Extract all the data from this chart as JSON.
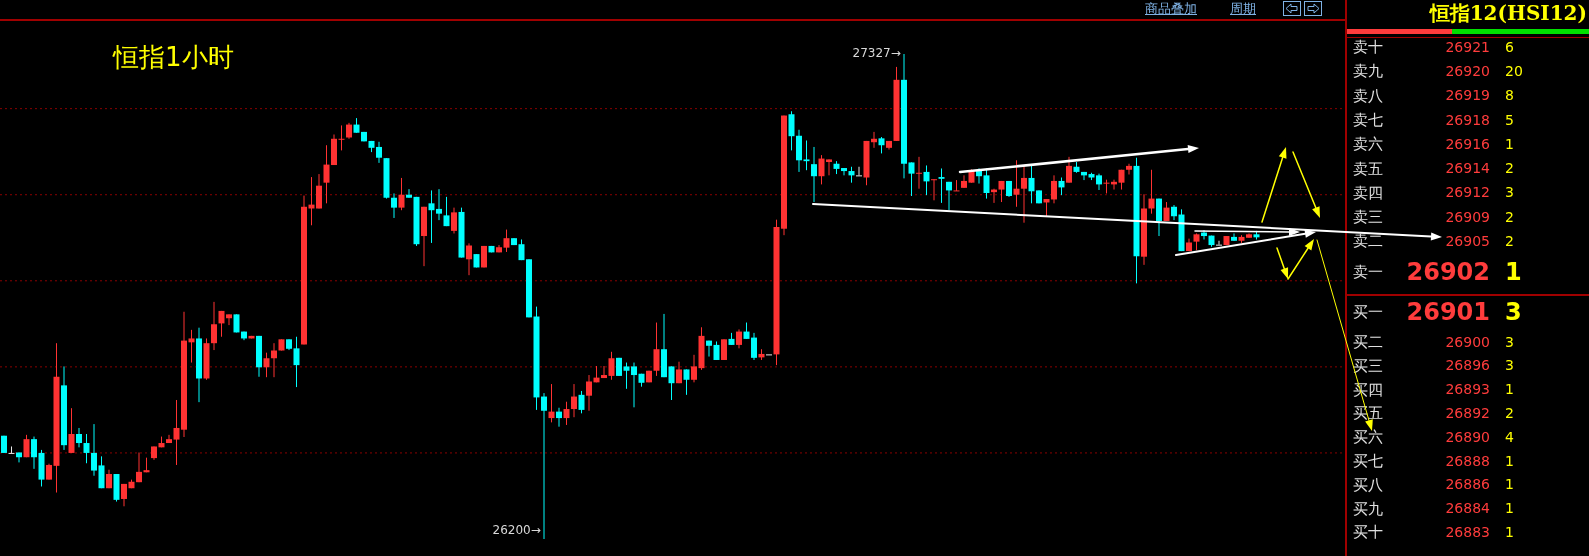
{
  "chart_data": [
    {
      "type": "candlestick",
      "title": "恒指1小时",
      "tick_labels": false,
      "grid": "y",
      "yticks": [
        {
          "value": 26400,
          "label": null
        },
        {
          "value": 26600,
          "label": null
        },
        {
          "value": 26800,
          "label": null
        },
        {
          "value": 27000,
          "label": null
        },
        {
          "value": 27200,
          "label": null
        }
      ],
      "annotations": [
        "27327→",
        "26200→",
        "商品叠加",
        "周期"
      ],
      "categories": [
        null,
        null,
        null,
        null,
        null,
        null,
        null,
        null,
        null,
        null,
        null,
        null,
        null,
        null,
        null,
        null,
        null,
        null,
        null,
        null,
        null,
        null,
        null,
        null,
        null,
        null,
        null,
        null,
        null,
        null,
        null,
        null,
        null,
        null,
        null,
        null,
        null,
        null,
        null,
        null,
        null,
        null,
        null,
        null,
        null,
        null,
        null,
        null,
        null,
        null,
        null,
        null,
        null,
        null,
        null,
        null,
        null,
        null,
        null,
        null,
        null,
        null,
        null,
        null,
        null,
        null,
        null,
        null,
        null,
        null,
        null,
        null,
        null,
        null,
        null,
        null,
        null,
        null,
        null,
        null,
        null,
        null,
        null,
        null,
        null,
        null,
        null,
        null,
        null,
        null,
        null,
        null,
        null,
        null,
        null,
        null,
        null,
        null,
        null,
        null,
        null,
        null,
        null,
        null,
        null,
        null,
        null,
        null,
        null,
        null,
        null,
        null,
        null,
        null,
        null,
        null,
        null,
        null,
        null,
        null,
        null,
        null,
        null,
        null,
        null,
        null,
        null,
        null,
        null,
        null,
        null,
        null,
        null,
        null,
        null,
        null,
        null,
        null,
        null,
        null,
        null,
        null,
        null,
        null,
        null,
        null,
        null,
        null,
        null,
        null,
        null,
        null,
        null,
        null,
        null,
        null,
        null,
        null,
        null,
        null,
        null,
        null,
        null,
        null,
        null,
        null,
        null,
        null
      ],
      "ohlc": [
        [
          26440,
          26440,
          26400,
          26400
        ],
        [
          26400,
          26415,
          26400,
          26400
        ],
        [
          26401,
          26401,
          26378,
          26390
        ],
        [
          26390,
          26442,
          26390,
          26432
        ],
        [
          26432,
          26438,
          26363,
          26390
        ],
        [
          26400,
          26407,
          26322,
          26338
        ],
        [
          26338,
          26375,
          26338,
          26372
        ],
        [
          26370,
          26655,
          26308,
          26577
        ],
        [
          26557,
          26601,
          26407,
          26418
        ],
        [
          26400,
          26504,
          26400,
          26444
        ],
        [
          26444,
          26458,
          26413,
          26423
        ],
        [
          26423,
          26444,
          26376,
          26400
        ],
        [
          26400,
          26467,
          26347,
          26359
        ],
        [
          26371,
          26392,
          26318,
          26318
        ],
        [
          26318,
          26361,
          26318,
          26351
        ],
        [
          26351,
          26351,
          26287,
          26291
        ],
        [
          26293,
          26328,
          26276,
          26328
        ],
        [
          26318,
          26338,
          26318,
          26333
        ],
        [
          26332,
          26401,
          26332,
          26356
        ],
        [
          26355,
          26389,
          26355,
          26360
        ],
        [
          26388,
          26415,
          26384,
          26415
        ],
        [
          26413,
          26438,
          26413,
          26423
        ],
        [
          26423,
          26442,
          26423,
          26432
        ],
        [
          26431,
          26523,
          26372,
          26458
        ],
        [
          26454,
          26728,
          26437,
          26661
        ],
        [
          26657,
          26686,
          26610,
          26666
        ],
        [
          26666,
          26691,
          26518,
          26573
        ],
        [
          26573,
          26666,
          26570,
          26655
        ],
        [
          26655,
          26751,
          26639,
          26699
        ],
        [
          26701,
          26730,
          26670,
          26730
        ],
        [
          26713,
          26722,
          26697,
          26722
        ],
        [
          26722,
          26722,
          26680,
          26680
        ],
        [
          26682,
          26682,
          26662,
          26666
        ],
        [
          26666,
          26672,
          26666,
          26672
        ],
        [
          26672,
          26672,
          26577,
          26599
        ],
        [
          26599,
          26633,
          26576,
          26620
        ],
        [
          26620,
          26655,
          26576,
          26638
        ],
        [
          26638,
          26664,
          26638,
          26664
        ],
        [
          26664,
          26664,
          26639,
          26642
        ],
        [
          26643,
          26670,
          26553,
          26604
        ],
        [
          26652,
          26998,
          26652,
          26972
        ],
        [
          26968,
          27041,
          26929,
          26977
        ],
        [
          26968,
          27048,
          26968,
          27021
        ],
        [
          27028,
          27115,
          26980,
          27070
        ],
        [
          27069,
          27140,
          27069,
          27130
        ],
        [
          27128,
          27161,
          27103,
          27130
        ],
        [
          27133,
          27167,
          27130,
          27163
        ],
        [
          27163,
          27178,
          27144,
          27144
        ],
        [
          27146,
          27146,
          27124,
          27124
        ],
        [
          27125,
          27125,
          27099,
          27109
        ],
        [
          27111,
          27123,
          27074,
          27086
        ],
        [
          27085,
          27085,
          26991,
          26993
        ],
        [
          26993,
          27003,
          26946,
          26970
        ],
        [
          26970,
          27039,
          26964,
          27000
        ],
        [
          27000,
          27013,
          26993,
          26993
        ],
        [
          26995,
          26995,
          26881,
          26885
        ],
        [
          26904,
          26972,
          26834,
          26972
        ],
        [
          26980,
          27010,
          26888,
          26964
        ],
        [
          26967,
          27013,
          26941,
          26956
        ],
        [
          26952,
          26995,
          26927,
          26927
        ],
        [
          26916,
          26970,
          26910,
          26959
        ],
        [
          26960,
          26970,
          26854,
          26854
        ],
        [
          26850,
          26887,
          26813,
          26882
        ],
        [
          26862,
          26862,
          26831,
          26831
        ],
        [
          26831,
          26881,
          26831,
          26881
        ],
        [
          26881,
          26881,
          26866,
          26866
        ],
        [
          26866,
          26883,
          26866,
          26878
        ],
        [
          26877,
          26919,
          26867,
          26899
        ],
        [
          26899,
          26899,
          26883,
          26883
        ],
        [
          26885,
          26896,
          26848,
          26848
        ],
        [
          26850,
          26850,
          26715,
          26715
        ],
        [
          26717,
          26740,
          26500,
          26529
        ],
        [
          26531,
          26539,
          26200,
          26498
        ],
        [
          26481,
          26560,
          26471,
          26496
        ],
        [
          26496,
          26505,
          26461,
          26481
        ],
        [
          26481,
          26519,
          26465,
          26502
        ],
        [
          26502,
          26560,
          26483,
          26531
        ],
        [
          26535,
          26544,
          26492,
          26500
        ],
        [
          26533,
          26581,
          26498,
          26566
        ],
        [
          26564,
          26602,
          26564,
          26575
        ],
        [
          26574,
          26602,
          26574,
          26581
        ],
        [
          26579,
          26635,
          26570,
          26620
        ],
        [
          26621,
          26621,
          26579,
          26579
        ],
        [
          26601,
          26610,
          26549,
          26591
        ],
        [
          26601,
          26610,
          26506,
          26581
        ],
        [
          26584,
          26584,
          26554,
          26563
        ],
        [
          26564,
          26591,
          26564,
          26591
        ],
        [
          26591,
          26703,
          26579,
          26641
        ],
        [
          26641,
          26723,
          26576,
          26576
        ],
        [
          26601,
          26601,
          26523,
          26562
        ],
        [
          26562,
          26612,
          26562,
          26594
        ],
        [
          26594,
          26594,
          26535,
          26570
        ],
        [
          26570,
          26628,
          26564,
          26601
        ],
        [
          26597,
          26692,
          26593,
          26672
        ],
        [
          26661,
          26661,
          26624,
          26649
        ],
        [
          26651,
          26659,
          26616,
          26616
        ],
        [
          26616,
          26664,
          26616,
          26664
        ],
        [
          26665,
          26679,
          26651,
          26651
        ],
        [
          26651,
          26687,
          26643,
          26682
        ],
        [
          26682,
          26703,
          26665,
          26665
        ],
        [
          26668,
          26679,
          26616,
          26621
        ],
        [
          26622,
          26641,
          26616,
          26630
        ],
        [
          26629,
          26629,
          26629,
          26629
        ],
        [
          26629,
          26942,
          26604,
          26925
        ],
        [
          26921,
          27184,
          26906,
          27184
        ],
        [
          27187,
          27194,
          27103,
          27136
        ],
        [
          27137,
          27151,
          27053,
          27080
        ],
        [
          27082,
          27126,
          27057,
          27078
        ],
        [
          27071,
          27111,
          26983,
          27043
        ],
        [
          27043,
          27092,
          27024,
          27084
        ],
        [
          27076,
          27082,
          27045,
          27082
        ],
        [
          27072,
          27078,
          27048,
          27060
        ],
        [
          27062,
          27062,
          27045,
          27055
        ],
        [
          27055,
          27065,
          27028,
          27045
        ],
        [
          27045,
          27065,
          27045,
          27045
        ],
        [
          27040,
          27125,
          27022,
          27125
        ],
        [
          27122,
          27146,
          27109,
          27130
        ],
        [
          27131,
          27134,
          27096,
          27115
        ],
        [
          27109,
          27125,
          27105,
          27125
        ],
        [
          27125,
          27297,
          27125,
          27267
        ],
        [
          27267,
          27327,
          27038,
          27072
        ],
        [
          27075,
          27075,
          26997,
          27049
        ],
        [
          27050,
          27088,
          27014,
          27051
        ],
        [
          27053,
          27068,
          26999,
          27031
        ],
        [
          27035,
          27036,
          26987,
          27036
        ],
        [
          27041,
          27061,
          26981,
          27037
        ],
        [
          27030,
          27030,
          26964,
          27010
        ],
        [
          27009,
          27034,
          27009,
          27010
        ],
        [
          27016,
          27045,
          27016,
          27032
        ],
        [
          27028,
          27059,
          27028,
          27055
        ],
        [
          27057,
          27061,
          27026,
          27043
        ],
        [
          27045,
          27061,
          26991,
          27004
        ],
        [
          27006,
          27014,
          26981,
          27012
        ],
        [
          27012,
          27032,
          26983,
          27032
        ],
        [
          27032,
          27032,
          26995,
          26997
        ],
        [
          27000,
          27080,
          26972,
          27014
        ],
        [
          27014,
          27068,
          26935,
          27039
        ],
        [
          27039,
          27068,
          26980,
          27008
        ],
        [
          27010,
          27010,
          26980,
          26980
        ],
        [
          26982,
          26990,
          26949,
          26990
        ],
        [
          26989,
          27045,
          26980,
          27032
        ],
        [
          27032,
          27040,
          26999,
          27017
        ],
        [
          27028,
          27088,
          27028,
          27067
        ],
        [
          27065,
          27076,
          27051,
          27053
        ],
        [
          27053,
          27053,
          27034,
          27045
        ],
        [
          27048,
          27051,
          27034,
          27040
        ],
        [
          27045,
          27049,
          27011,
          27024
        ],
        [
          27027,
          27035,
          27003,
          27028
        ],
        [
          27024,
          27035,
          27012,
          27030
        ],
        [
          27028,
          27058,
          27012,
          27058
        ],
        [
          27058,
          27072,
          27047,
          27067
        ],
        [
          27067,
          27086,
          26794,
          26857
        ],
        [
          26856,
          27001,
          26837,
          26968
        ],
        [
          26968,
          27058,
          26956,
          26991
        ],
        [
          26991,
          26991,
          26904,
          26939
        ],
        [
          26939,
          26983,
          26939,
          26970
        ],
        [
          26972,
          26976,
          26941,
          26950
        ],
        [
          26954,
          26966,
          26869,
          26869
        ],
        [
          26869,
          26898,
          26869,
          26889
        ],
        [
          26891,
          26910,
          26871,
          26908
        ],
        [
          26912,
          26918,
          26896,
          26904
        ],
        [
          26905,
          26905,
          26879,
          26883
        ],
        [
          26884,
          26893,
          26884,
          26884
        ],
        [
          26883,
          26904,
          26883,
          26904
        ],
        [
          26902,
          26910,
          26893,
          26893
        ],
        [
          26893,
          26906,
          26888,
          26902
        ],
        [
          26900,
          26910,
          26900,
          26908
        ],
        [
          26908,
          26916,
          26896,
          26901
        ]
      ]
    },
    {
      "type": "other",
      "title": "恒指12(HSI12)",
      "data_labels": true,
      "categories": [
        "卖十",
        "卖九",
        "卖八",
        "卖七",
        "卖六",
        "卖五",
        "卖四",
        "卖三",
        "卖二",
        "卖一",
        "买一",
        "买二",
        "买三",
        "买四",
        "买五",
        "买六",
        "买七",
        "买八",
        "买九",
        "买十"
      ],
      "series": [
        {
          "color": "#ff3c3c",
          "values": [
            26921,
            26920,
            26919,
            26918,
            26916,
            26914,
            26912,
            26909,
            26905,
            26902,
            26901,
            26900,
            26896,
            26893,
            26892,
            26890,
            26888,
            26886,
            26884,
            26883
          ]
        },
        {
          "color": "#ffff00",
          "values": [
            6,
            20,
            8,
            5,
            1,
            2,
            3,
            2,
            2,
            1,
            3,
            3,
            3,
            1,
            2,
            4,
            1,
            1,
            1,
            1
          ]
        }
      ]
    }
  ]
}
